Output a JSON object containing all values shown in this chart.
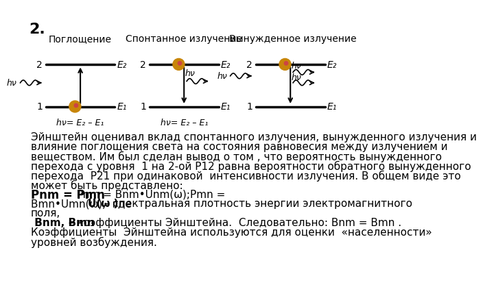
{
  "title_number": "2.",
  "title_fontsize": 16,
  "background_color": "#ffffff",
  "diagram_titles": [
    "Поглощение",
    "Спонтанное излучение",
    "Вынужденное излучение"
  ],
  "energy_labels_top": [
    "E₂",
    "E₂",
    "E₂"
  ],
  "energy_labels_bot": [
    "E₁",
    "E₁",
    "E₁"
  ],
  "formula1": "hν= E₂ – E₁",
  "formula2": "hν= E₂ – E₁",
  "body_text": [
    "Эйнштейн оценивал вклад спонтанного излучения, вынужденного излучения и",
    "влияние поглощения света на состояния равновесия между излучением и",
    "веществом. Им был сделан вывод о том , что вероятность вынужденного",
    "перехода с уровня  1 на 2-ой Р12 равна вероятности обратного вынужденного",
    "перехода  Р21 при одинаковой  интенсивности излучения. В общем виде это",
    "может быть представлено:"
  ],
  "bold_formula": "Pnm = Pmn",
  "formula_continuation": "  Pnm = Bnm•Unm(ω);Pmn =",
  "formula_line2_start": "Bmn•Umn(ω),  где ",
  "formula_u": "U(ω )",
  "formula_line2_end": "- спектральная плотность энергии электромагнитного",
  "formula_line3": "поля,",
  "bold_line": " Bnm, Bmn",
  "bold_line_cont": " – коэффициенты Эйнштейна.  Следовательно: Bnm = Bmn .",
  "last_lines": [
    "Коэффициенты  Эйнштейна используются для оценки  «населенности»",
    "уровней возбуждения."
  ],
  "text_fontsize": 11,
  "ball_color": "#c8860a",
  "ball_highlight": "#cc4444"
}
